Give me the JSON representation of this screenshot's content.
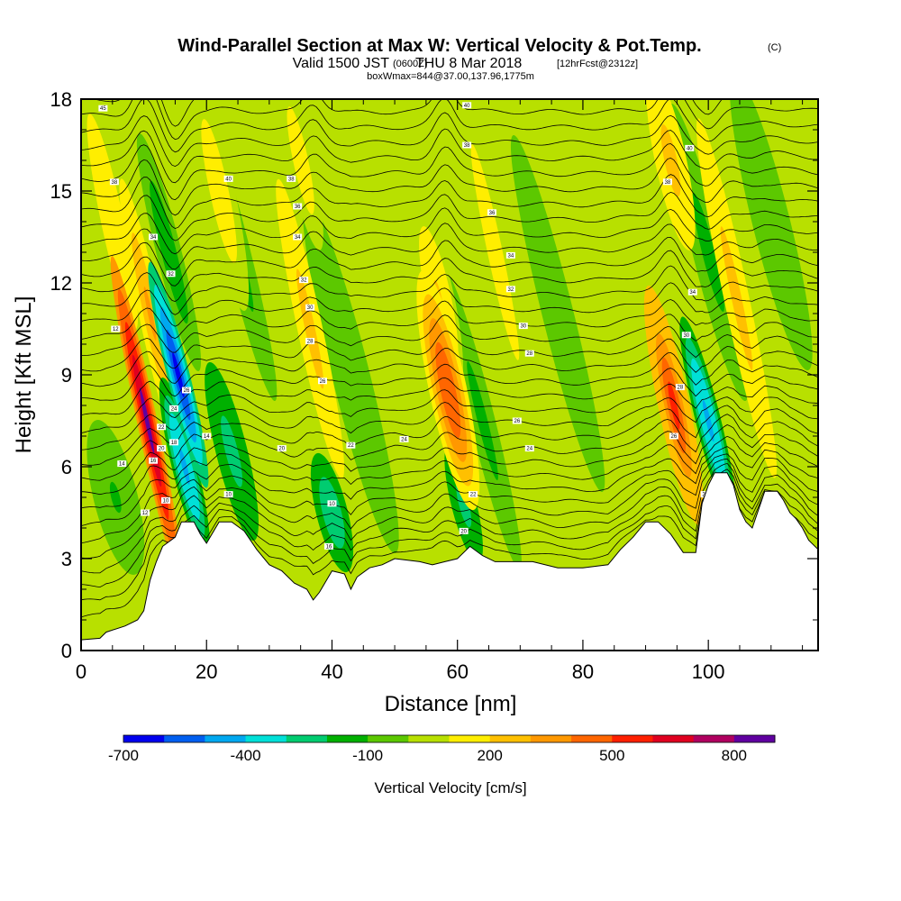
{
  "title": {
    "main": "Wind-Parallel Section at Max W: Vertical Velocity & Pot.Temp.",
    "copyright": "(C)",
    "valid_prefix": "Valid 1500 JST",
    "valid_utc": "(0600Z)",
    "valid_date": "THU 8 Mar 2018",
    "forecast": "[12hrFcst@2312z]",
    "box_info": "boxWmax=844@37.00,137.96,1775m"
  },
  "chart_data": {
    "type": "heatmap",
    "xlabel": "Distance [nm]",
    "ylabel": "Height [Kft MSL]",
    "xlim": [
      0,
      117.5
    ],
    "ylim": [
      0,
      18
    ],
    "x_ticks": [
      0,
      20,
      40,
      60,
      80,
      100
    ],
    "y_ticks": [
      0,
      3,
      6,
      9,
      12,
      15,
      18
    ],
    "colorbar": {
      "label": "Vertical Velocity [cm/s]",
      "tick_labels": [
        {
          "value": -700,
          "label": "-700"
        },
        {
          "value": -400,
          "label": "-400"
        },
        {
          "value": -100,
          "label": "-100"
        },
        {
          "value": 200,
          "label": "200"
        },
        {
          "value": 500,
          "label": "500"
        },
        {
          "value": 800,
          "label": "800"
        }
      ],
      "levels": [
        -700,
        -600,
        -500,
        -400,
        -300,
        -200,
        -100,
        0,
        100,
        200,
        300,
        400,
        500,
        600,
        700,
        800,
        900
      ],
      "colors": [
        "#0000ee",
        "#005ff0",
        "#00a8f0",
        "#00e0d8",
        "#00cc70",
        "#00b000",
        "#5cc800",
        "#b8e000",
        "#ffee00",
        "#ffc000",
        "#ff9800",
        "#ff6600",
        "#ff2000",
        "#e00020",
        "#b00060",
        "#6000a0"
      ]
    },
    "terrain": [
      [
        0,
        0.35
      ],
      [
        3,
        0.4
      ],
      [
        4,
        0.6
      ],
      [
        7,
        0.8
      ],
      [
        9,
        1.0
      ],
      [
        10,
        1.3
      ],
      [
        11,
        2.3
      ],
      [
        12,
        2.9
      ],
      [
        13,
        3.4
      ],
      [
        15,
        3.7
      ],
      [
        16,
        4.2
      ],
      [
        18,
        4.2
      ],
      [
        19,
        3.8
      ],
      [
        20,
        3.5
      ],
      [
        22,
        4.2
      ],
      [
        24,
        4.2
      ],
      [
        26,
        3.9
      ],
      [
        28,
        3.3
      ],
      [
        30,
        2.8
      ],
      [
        32,
        2.6
      ],
      [
        34,
        2.2
      ],
      [
        36,
        2.0
      ],
      [
        37,
        1.65
      ],
      [
        38,
        1.9
      ],
      [
        40,
        2.6
      ],
      [
        42,
        2.5
      ],
      [
        43,
        2.0
      ],
      [
        44,
        2.4
      ],
      [
        46,
        2.7
      ],
      [
        48,
        2.8
      ],
      [
        50,
        3.0
      ],
      [
        54,
        2.9
      ],
      [
        56,
        2.8
      ],
      [
        58,
        2.9
      ],
      [
        60,
        3.0
      ],
      [
        62,
        3.4
      ],
      [
        64,
        3.1
      ],
      [
        66,
        2.9
      ],
      [
        70,
        2.9
      ],
      [
        72,
        2.9
      ],
      [
        76,
        2.7
      ],
      [
        80,
        2.7
      ],
      [
        84,
        2.8
      ],
      [
        86,
        3.3
      ],
      [
        88,
        3.7
      ],
      [
        90,
        4.2
      ],
      [
        92,
        4.2
      ],
      [
        94,
        3.8
      ],
      [
        96,
        3.2
      ],
      [
        98,
        3.2
      ],
      [
        99,
        4.8
      ],
      [
        100,
        5.4
      ],
      [
        101,
        5.8
      ],
      [
        103,
        5.8
      ],
      [
        104,
        5.4
      ],
      [
        105,
        4.6
      ],
      [
        106,
        4.2
      ],
      [
        107,
        4.0
      ],
      [
        108,
        4.6
      ],
      [
        109,
        5.2
      ],
      [
        111,
        5.2
      ],
      [
        112,
        4.9
      ],
      [
        113,
        4.5
      ],
      [
        114,
        4.3
      ],
      [
        115,
        4.0
      ],
      [
        116,
        3.6
      ],
      [
        117.5,
        3.3
      ]
    ],
    "velocity_features": [
      {
        "x": 10.5,
        "y": 7.5,
        "value": 820,
        "dx": 1.6,
        "dy": 5.5
      },
      {
        "x": 11.0,
        "y": 11.0,
        "value": 300,
        "dx": 1.8,
        "dy": 4.5
      },
      {
        "x": 15.5,
        "y": 9.0,
        "value": -650,
        "dx": 1.8,
        "dy": 3.8
      },
      {
        "x": 16.5,
        "y": 6.0,
        "value": -450,
        "dx": 2.0,
        "dy": 3.0
      },
      {
        "x": 14.0,
        "y": 13.0,
        "value": -150,
        "dx": 2.0,
        "dy": 4.0
      },
      {
        "x": 5.0,
        "y": 14.0,
        "value": 150,
        "dx": 3.0,
        "dy": 6.0
      },
      {
        "x": 5.5,
        "y": 5.0,
        "value": -110,
        "dx": 3.5,
        "dy": 2.6
      },
      {
        "x": 22.0,
        "y": 15.0,
        "value": 150,
        "dx": 2.5,
        "dy": 4.0
      },
      {
        "x": 24.0,
        "y": 6.5,
        "value": -260,
        "dx": 2.5,
        "dy": 3.0
      },
      {
        "x": 25.0,
        "y": 13.0,
        "value": -120,
        "dx": 2.0,
        "dy": 5.0
      },
      {
        "x": 36.5,
        "y": 10.5,
        "value": 250,
        "dx": 2.0,
        "dy": 5.0
      },
      {
        "x": 35.0,
        "y": 16.0,
        "value": 150,
        "dx": 2.0,
        "dy": 3.0
      },
      {
        "x": 40.0,
        "y": 4.5,
        "value": -300,
        "dx": 2.5,
        "dy": 2.0
      },
      {
        "x": 43.0,
        "y": 9.0,
        "value": -100,
        "dx": 3.0,
        "dy": 6.0
      },
      {
        "x": 58.5,
        "y": 8.5,
        "value": 480,
        "dx": 3.0,
        "dy": 4.0
      },
      {
        "x": 57.0,
        "y": 11.5,
        "value": 220,
        "dx": 2.5,
        "dy": 3.0
      },
      {
        "x": 61.0,
        "y": 4.8,
        "value": -270,
        "dx": 2.0,
        "dy": 2.0
      },
      {
        "x": 64.0,
        "y": 7.5,
        "value": -120,
        "dx": 2.0,
        "dy": 5.0
      },
      {
        "x": 66.0,
        "y": 13.0,
        "value": 150,
        "dx": 2.0,
        "dy": 6.0
      },
      {
        "x": 76.0,
        "y": 11.0,
        "value": -100,
        "dx": 2.5,
        "dy": 6.0
      },
      {
        "x": 94.5,
        "y": 8.0,
        "value": 520,
        "dx": 2.5,
        "dy": 4.0
      },
      {
        "x": 94.0,
        "y": 16.0,
        "value": 260,
        "dx": 2.5,
        "dy": 3.0
      },
      {
        "x": 100.0,
        "y": 7.5,
        "value": -450,
        "dx": 2.0,
        "dy": 3.5
      },
      {
        "x": 100.0,
        "y": 13.0,
        "value": -130,
        "dx": 2.5,
        "dy": 5.0
      },
      {
        "x": 104.5,
        "y": 11.5,
        "value": 250,
        "dx": 2.0,
        "dy": 6.0
      },
      {
        "x": 110.0,
        "y": 14.0,
        "value": -80,
        "dx": 3.0,
        "dy": 5.0
      }
    ],
    "contour_labels": [
      {
        "x": 3.5,
        "y": 17.7,
        "label": "45"
      },
      {
        "x": 5.3,
        "y": 15.3,
        "label": "38"
      },
      {
        "x": 11.5,
        "y": 13.5,
        "label": "34"
      },
      {
        "x": 14.3,
        "y": 12.3,
        "label": "32"
      },
      {
        "x": 5.5,
        "y": 10.5,
        "label": "12"
      },
      {
        "x": 16.8,
        "y": 8.5,
        "label": "26"
      },
      {
        "x": 14.8,
        "y": 7.9,
        "label": "24"
      },
      {
        "x": 12.8,
        "y": 7.3,
        "label": "22"
      },
      {
        "x": 12.8,
        "y": 6.6,
        "label": "20"
      },
      {
        "x": 14.8,
        "y": 6.8,
        "label": "18"
      },
      {
        "x": 11.5,
        "y": 6.2,
        "label": "16"
      },
      {
        "x": 6.5,
        "y": 6.1,
        "label": "14"
      },
      {
        "x": 10.2,
        "y": 4.5,
        "label": "12"
      },
      {
        "x": 13.5,
        "y": 4.9,
        "label": "10"
      },
      {
        "x": 20.0,
        "y": 7.0,
        "label": "14"
      },
      {
        "x": 23.5,
        "y": 5.1,
        "label": "10"
      },
      {
        "x": 23.5,
        "y": 15.4,
        "label": "40"
      },
      {
        "x": 33.5,
        "y": 15.4,
        "label": "38"
      },
      {
        "x": 34.5,
        "y": 14.5,
        "label": "36"
      },
      {
        "x": 34.5,
        "y": 13.5,
        "label": "34"
      },
      {
        "x": 35.5,
        "y": 12.1,
        "label": "32"
      },
      {
        "x": 36.5,
        "y": 11.2,
        "label": "30"
      },
      {
        "x": 36.5,
        "y": 10.1,
        "label": "28"
      },
      {
        "x": 38.5,
        "y": 8.8,
        "label": "26"
      },
      {
        "x": 32.0,
        "y": 6.6,
        "label": "20"
      },
      {
        "x": 43.0,
        "y": 6.7,
        "label": "22"
      },
      {
        "x": 40.0,
        "y": 4.8,
        "label": "10"
      },
      {
        "x": 39.5,
        "y": 3.4,
        "label": "16"
      },
      {
        "x": 51.5,
        "y": 6.9,
        "label": "24"
      },
      {
        "x": 61.5,
        "y": 17.8,
        "label": "40"
      },
      {
        "x": 61.5,
        "y": 16.5,
        "label": "38"
      },
      {
        "x": 65.5,
        "y": 14.3,
        "label": "36"
      },
      {
        "x": 68.5,
        "y": 12.9,
        "label": "34"
      },
      {
        "x": 68.5,
        "y": 11.8,
        "label": "32"
      },
      {
        "x": 70.5,
        "y": 10.6,
        "label": "30"
      },
      {
        "x": 71.5,
        "y": 9.7,
        "label": "28"
      },
      {
        "x": 69.5,
        "y": 7.5,
        "label": "26"
      },
      {
        "x": 71.5,
        "y": 6.6,
        "label": "24"
      },
      {
        "x": 62.5,
        "y": 5.1,
        "label": "22"
      },
      {
        "x": 61.0,
        "y": 3.9,
        "label": "20"
      },
      {
        "x": 97.0,
        "y": 16.4,
        "label": "40"
      },
      {
        "x": 93.5,
        "y": 15.3,
        "label": "38"
      },
      {
        "x": 97.5,
        "y": 11.7,
        "label": "34"
      },
      {
        "x": 96.5,
        "y": 10.3,
        "label": "30"
      },
      {
        "x": 95.5,
        "y": 8.6,
        "label": "28"
      },
      {
        "x": 94.5,
        "y": 7.0,
        "label": "26"
      },
      {
        "x": 99.5,
        "y": 5.1,
        "label": "20"
      }
    ]
  }
}
